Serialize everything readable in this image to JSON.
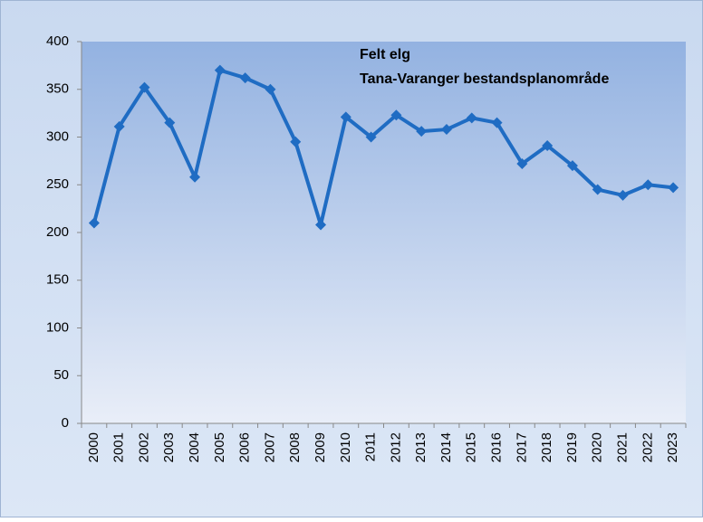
{
  "chart_data": {
    "type": "line",
    "title": "Felt elg",
    "subtitle": "Tana-Varanger bestandsplanområde",
    "categories": [
      "2000",
      "2001",
      "2002",
      "2003",
      "2004",
      "2005",
      "2006",
      "2007",
      "2008",
      "2009",
      "2010",
      "2011",
      "2012",
      "2013",
      "2014",
      "2015",
      "2016",
      "2017",
      "2018",
      "2019",
      "2020",
      "2021",
      "2022",
      "2023"
    ],
    "series": [
      {
        "name": "Felt elg",
        "color": "#1f6cc3",
        "values": [
          210,
          311,
          352,
          315,
          258,
          370,
          362,
          350,
          295,
          208,
          321,
          300,
          323,
          306,
          308,
          320,
          315,
          272,
          291,
          270,
          245,
          239,
          250,
          247
        ]
      }
    ],
    "ylim": [
      0,
      400
    ],
    "yticks": [
      0,
      50,
      100,
      150,
      200,
      250,
      300,
      350,
      400
    ],
    "grid": false
  }
}
